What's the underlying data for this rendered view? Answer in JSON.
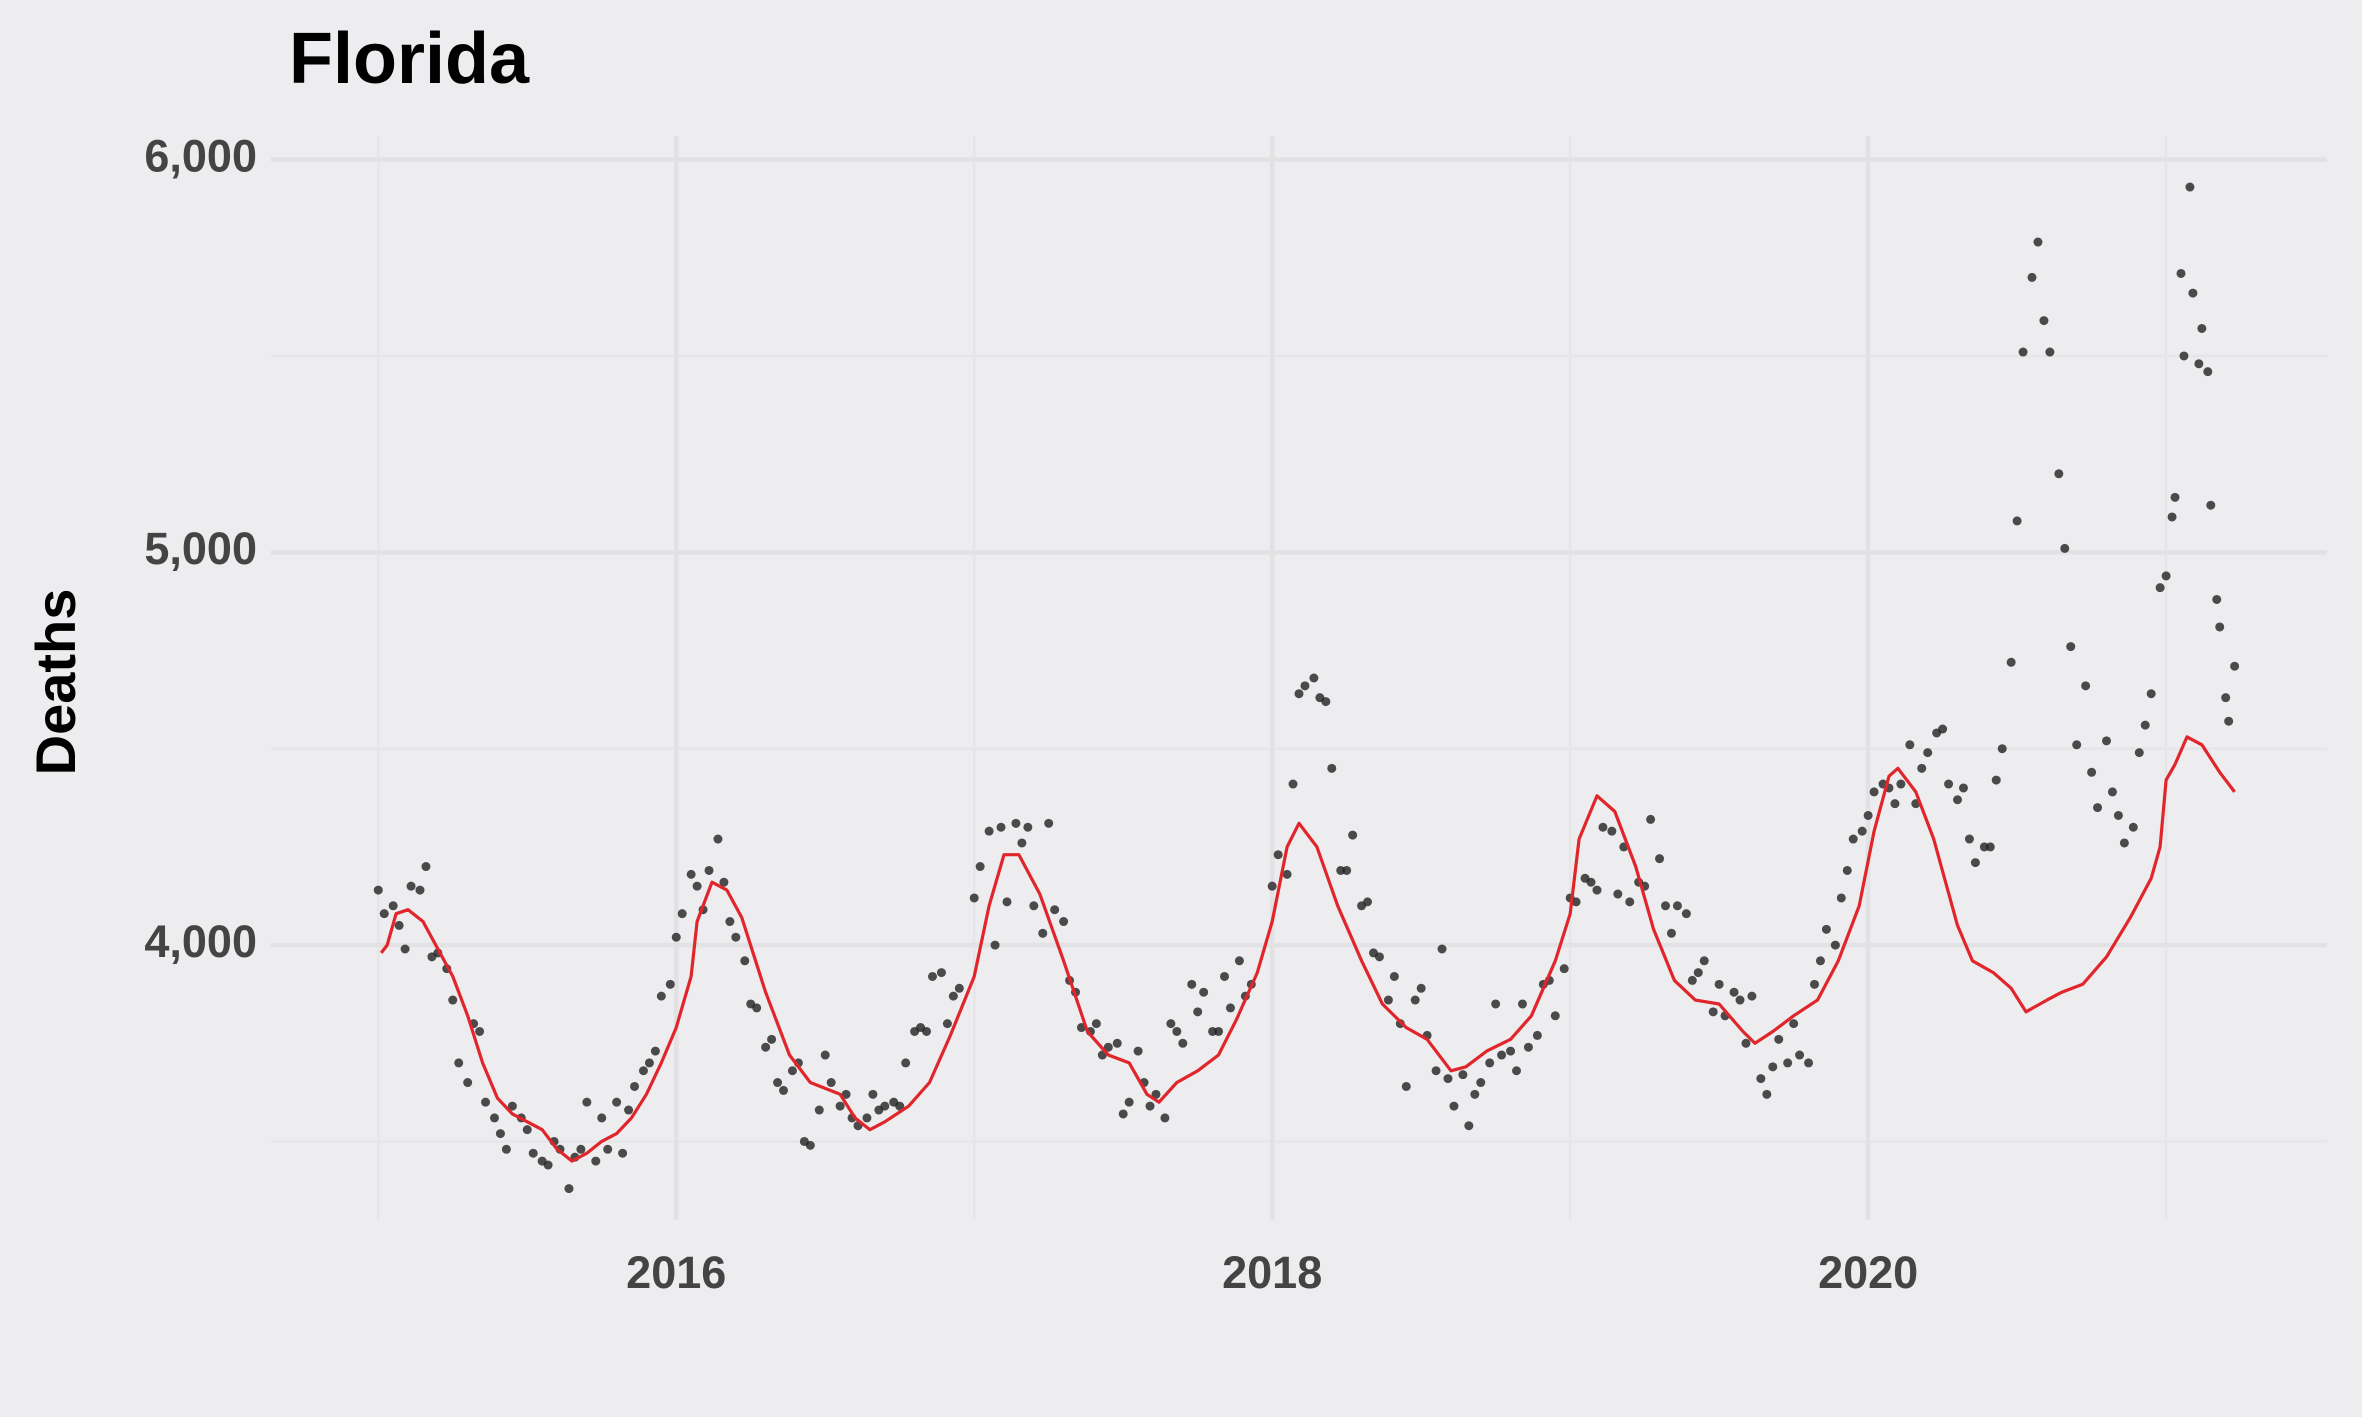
{
  "chart_data": {
    "type": "scatter",
    "title": "Florida",
    "ylabel": "Deaths",
    "xlim": [
      2014.64,
      2021.54
    ],
    "ylim": [
      3300,
      6060
    ],
    "xticks": [
      2016,
      2018,
      2020
    ],
    "xminor": [
      2015,
      2017,
      2019,
      2021
    ],
    "yticks": [
      {
        "value": 4000,
        "label": "4,000"
      },
      {
        "value": 5000,
        "label": "5,000"
      },
      {
        "value": 6000,
        "label": "6,000"
      }
    ],
    "yminor": [
      3500,
      4500,
      5500
    ],
    "grid": true,
    "series": [
      {
        "type": "scatter",
        "color": "#222222",
        "x": [
          2015.0,
          2015.02,
          2015.05,
          2015.07,
          2015.09,
          2015.11,
          2015.14,
          2015.16,
          2015.18,
          2015.2,
          2015.23,
          2015.25,
          2015.27,
          2015.3,
          2015.32,
          2015.34,
          2015.36,
          2015.39,
          2015.41,
          2015.43,
          2015.45,
          2015.48,
          2015.5,
          2015.52,
          2015.55,
          2015.57,
          2015.59,
          2015.61,
          2015.64,
          2015.66,
          2015.68,
          2015.7,
          2015.73,
          2015.75,
          2015.77,
          2015.8,
          2015.82,
          2015.84,
          2015.86,
          2015.89,
          2015.91,
          2015.93,
          2015.95,
          2015.98,
          2016.0,
          2016.02,
          2016.05,
          2016.07,
          2016.09,
          2016.11,
          2016.14,
          2016.16,
          2016.18,
          2016.2,
          2016.23,
          2016.25,
          2016.27,
          2016.3,
          2016.32,
          2016.34,
          2016.36,
          2016.39,
          2016.41,
          2016.43,
          2016.45,
          2016.48,
          2016.5,
          2016.52,
          2016.55,
          2016.57,
          2016.59,
          2016.61,
          2016.64,
          2016.66,
          2016.68,
          2016.7,
          2016.73,
          2016.75,
          2016.77,
          2016.8,
          2016.82,
          2016.84,
          2016.86,
          2016.89,
          2016.91,
          2016.93,
          2016.95,
          2017.0,
          2017.02,
          2017.05,
          2017.07,
          2017.09,
          2017.11,
          2017.14,
          2017.16,
          2017.18,
          2017.2,
          2017.23,
          2017.25,
          2017.27,
          2017.3,
          2017.32,
          2017.34,
          2017.36,
          2017.39,
          2017.41,
          2017.43,
          2017.45,
          2017.48,
          2017.5,
          2017.52,
          2017.55,
          2017.57,
          2017.59,
          2017.61,
          2017.64,
          2017.66,
          2017.68,
          2017.7,
          2017.73,
          2017.75,
          2017.77,
          2017.8,
          2017.82,
          2017.84,
          2017.86,
          2017.89,
          2017.91,
          2017.93,
          2018.0,
          2018.02,
          2018.05,
          2018.07,
          2018.09,
          2018.11,
          2018.14,
          2018.16,
          2018.18,
          2018.2,
          2018.23,
          2018.25,
          2018.27,
          2018.3,
          2018.32,
          2018.34,
          2018.36,
          2018.39,
          2018.41,
          2018.43,
          2018.45,
          2018.48,
          2018.5,
          2018.52,
          2018.55,
          2018.57,
          2018.59,
          2018.61,
          2018.64,
          2018.66,
          2018.68,
          2018.7,
          2018.73,
          2018.75,
          2018.77,
          2018.8,
          2018.82,
          2018.84,
          2018.86,
          2018.89,
          2018.91,
          2018.93,
          2018.95,
          2018.98,
          2019.0,
          2019.02,
          2019.05,
          2019.07,
          2019.09,
          2019.11,
          2019.14,
          2019.16,
          2019.18,
          2019.2,
          2019.23,
          2019.25,
          2019.27,
          2019.3,
          2019.32,
          2019.34,
          2019.36,
          2019.39,
          2019.41,
          2019.43,
          2019.45,
          2019.48,
          2019.5,
          2019.52,
          2019.55,
          2019.57,
          2019.59,
          2019.61,
          2019.64,
          2019.66,
          2019.68,
          2019.7,
          2019.73,
          2019.75,
          2019.77,
          2019.8,
          2019.82,
          2019.84,
          2019.86,
          2019.89,
          2019.91,
          2019.93,
          2019.95,
          2019.98,
          2020.0,
          2020.02,
          2020.05,
          2020.07,
          2020.09,
          2020.11,
          2020.14,
          2020.16,
          2020.18,
          2020.2,
          2020.23,
          2020.25,
          2020.27,
          2020.3,
          2020.32,
          2020.34,
          2020.36,
          2020.39,
          2020.41,
          2020.43,
          2020.45,
          2020.48,
          2020.5,
          2020.52,
          2020.55,
          2020.57,
          2020.59,
          2020.61,
          2020.64,
          2020.66,
          2020.68,
          2020.7,
          2020.73,
          2020.75,
          2020.77,
          2020.8,
          2020.82,
          2020.84,
          2020.86,
          2020.89,
          2020.91,
          2020.93,
          2020.95,
          2020.98,
          2021.0,
          2021.02,
          2021.03,
          2021.05,
          2021.06,
          2021.08,
          2021.09,
          2021.11,
          2021.12,
          2021.14,
          2021.15,
          2021.17,
          2021.18,
          2021.2,
          2021.21,
          2021.23
        ],
        "values": [
          4140,
          4080,
          4100,
          4050,
          3990,
          4150,
          4140,
          4200,
          3970,
          3980,
          3940,
          3860,
          3700,
          3650,
          3800,
          3780,
          3600,
          3560,
          3520,
          3480,
          3590,
          3560,
          3530,
          3470,
          3450,
          3440,
          3500,
          3480,
          3380,
          3460,
          3480,
          3600,
          3450,
          3560,
          3480,
          3600,
          3470,
          3580,
          3640,
          3680,
          3700,
          3730,
          3870,
          3900,
          4020,
          4080,
          4180,
          4150,
          4090,
          4190,
          4270,
          4160,
          4060,
          4020,
          3960,
          3850,
          3840,
          3740,
          3760,
          3650,
          3630,
          3680,
          3700,
          3500,
          3490,
          3580,
          3720,
          3650,
          3590,
          3620,
          3560,
          3540,
          3560,
          3620,
          3580,
          3590,
          3600,
          3590,
          3700,
          3780,
          3790,
          3780,
          3920,
          3930,
          3800,
          3870,
          3890,
          4120,
          4200,
          4290,
          4000,
          4300,
          4110,
          4310,
          4260,
          4300,
          4100,
          4030,
          4310,
          4090,
          4060,
          3910,
          3880,
          3790,
          3780,
          3800,
          3720,
          3740,
          3750,
          3570,
          3600,
          3730,
          3650,
          3590,
          3620,
          3560,
          3800,
          3780,
          3750,
          3900,
          3830,
          3880,
          3780,
          3780,
          3920,
          3840,
          3960,
          3870,
          3900,
          4150,
          4230,
          4180,
          4410,
          4640,
          4660,
          4680,
          4630,
          4620,
          4450,
          4190,
          4190,
          4280,
          4100,
          4110,
          3980,
          3970,
          3860,
          3920,
          3800,
          3640,
          3860,
          3890,
          3770,
          3680,
          3990,
          3660,
          3590,
          3670,
          3540,
          3620,
          3650,
          3700,
          3850,
          3720,
          3730,
          3680,
          3850,
          3740,
          3770,
          3900,
          3910,
          3820,
          3940,
          4120,
          4110,
          4170,
          4160,
          4140,
          4300,
          4290,
          4130,
          4250,
          4110,
          4160,
          4150,
          4320,
          4220,
          4100,
          4030,
          4100,
          4080,
          3910,
          3930,
          3960,
          3830,
          3900,
          3820,
          3880,
          3860,
          3750,
          3870,
          3660,
          3620,
          3690,
          3760,
          3700,
          3800,
          3720,
          3700,
          3900,
          3960,
          4040,
          4000,
          4120,
          4190,
          4270,
          4290,
          4330,
          4390,
          4410,
          4400,
          4360,
          4410,
          4510,
          4360,
          4450,
          4490,
          4540,
          4550,
          4410,
          4370,
          4400,
          4270,
          4210,
          4250,
          4250,
          4420,
          4500,
          4720,
          5080,
          5510,
          5700,
          5790,
          5590,
          5510,
          5200,
          5010,
          4760,
          4510,
          4660,
          4440,
          4350,
          4520,
          4390,
          4330,
          4260,
          4300,
          4490,
          4560,
          4640,
          4910,
          4940,
          5090,
          5140,
          5710,
          5500,
          5930,
          5660,
          5480,
          5570,
          5460,
          5120,
          4880,
          4810,
          4630,
          4570,
          4710
        ]
      },
      {
        "type": "line",
        "color": "#e0262b",
        "x": [
          2015.01,
          2015.03,
          2015.06,
          2015.1,
          2015.15,
          2015.2,
          2015.25,
          2015.3,
          2015.35,
          2015.4,
          2015.45,
          2015.5,
          2015.55,
          2015.6,
          2015.65,
          2015.7,
          2015.75,
          2015.8,
          2015.85,
          2015.9,
          2015.95,
          2016.0,
          2016.05,
          2016.07,
          2016.12,
          2016.17,
          2016.22,
          2016.3,
          2016.38,
          2016.45,
          2016.55,
          2016.6,
          2016.65,
          2016.7,
          2016.78,
          2016.85,
          2016.92,
          2017.0,
          2017.05,
          2017.1,
          2017.15,
          2017.22,
          2017.3,
          2017.38,
          2017.45,
          2017.52,
          2017.58,
          2017.62,
          2017.68,
          2017.75,
          2017.82,
          2017.88,
          2017.95,
          2018.0,
          2018.05,
          2018.09,
          2018.15,
          2018.22,
          2018.3,
          2018.37,
          2018.45,
          2018.52,
          2018.6,
          2018.65,
          2018.72,
          2018.8,
          2018.87,
          2018.95,
          2019.0,
          2019.03,
          2019.09,
          2019.15,
          2019.22,
          2019.28,
          2019.35,
          2019.42,
          2019.5,
          2019.58,
          2019.62,
          2019.68,
          2019.75,
          2019.83,
          2019.9,
          2019.97,
          2020.02,
          2020.07,
          2020.1,
          2020.16,
          2020.22,
          2020.3,
          2020.35,
          2020.42,
          2020.48,
          2020.53,
          2020.6,
          2020.65,
          2020.72,
          2020.8,
          2020.88,
          2020.95,
          2020.98,
          2021.0,
          2021.03,
          2021.07,
          2021.12,
          2021.18,
          2021.23
        ],
        "values": [
          3980,
          4000,
          4080,
          4090,
          4060,
          3990,
          3920,
          3820,
          3700,
          3610,
          3570,
          3550,
          3530,
          3480,
          3450,
          3470,
          3500,
          3520,
          3560,
          3620,
          3700,
          3790,
          3920,
          4060,
          4160,
          4140,
          4070,
          3880,
          3720,
          3650,
          3620,
          3560,
          3530,
          3550,
          3590,
          3650,
          3770,
          3920,
          4100,
          4230,
          4230,
          4130,
          3960,
          3780,
          3720,
          3700,
          3620,
          3600,
          3650,
          3680,
          3720,
          3810,
          3930,
          4060,
          4250,
          4310,
          4250,
          4100,
          3960,
          3850,
          3790,
          3760,
          3680,
          3690,
          3730,
          3760,
          3820,
          3960,
          4080,
          4270,
          4380,
          4340,
          4200,
          4040,
          3910,
          3860,
          3850,
          3780,
          3750,
          3780,
          3820,
          3860,
          3960,
          4100,
          4290,
          4430,
          4450,
          4390,
          4270,
          4050,
          3960,
          3930,
          3890,
          3830,
          3860,
          3880,
          3900,
          3970,
          4070,
          4170,
          4250,
          4420,
          4460,
          4530,
          4510,
          4440,
          4390
        ]
      }
    ]
  }
}
